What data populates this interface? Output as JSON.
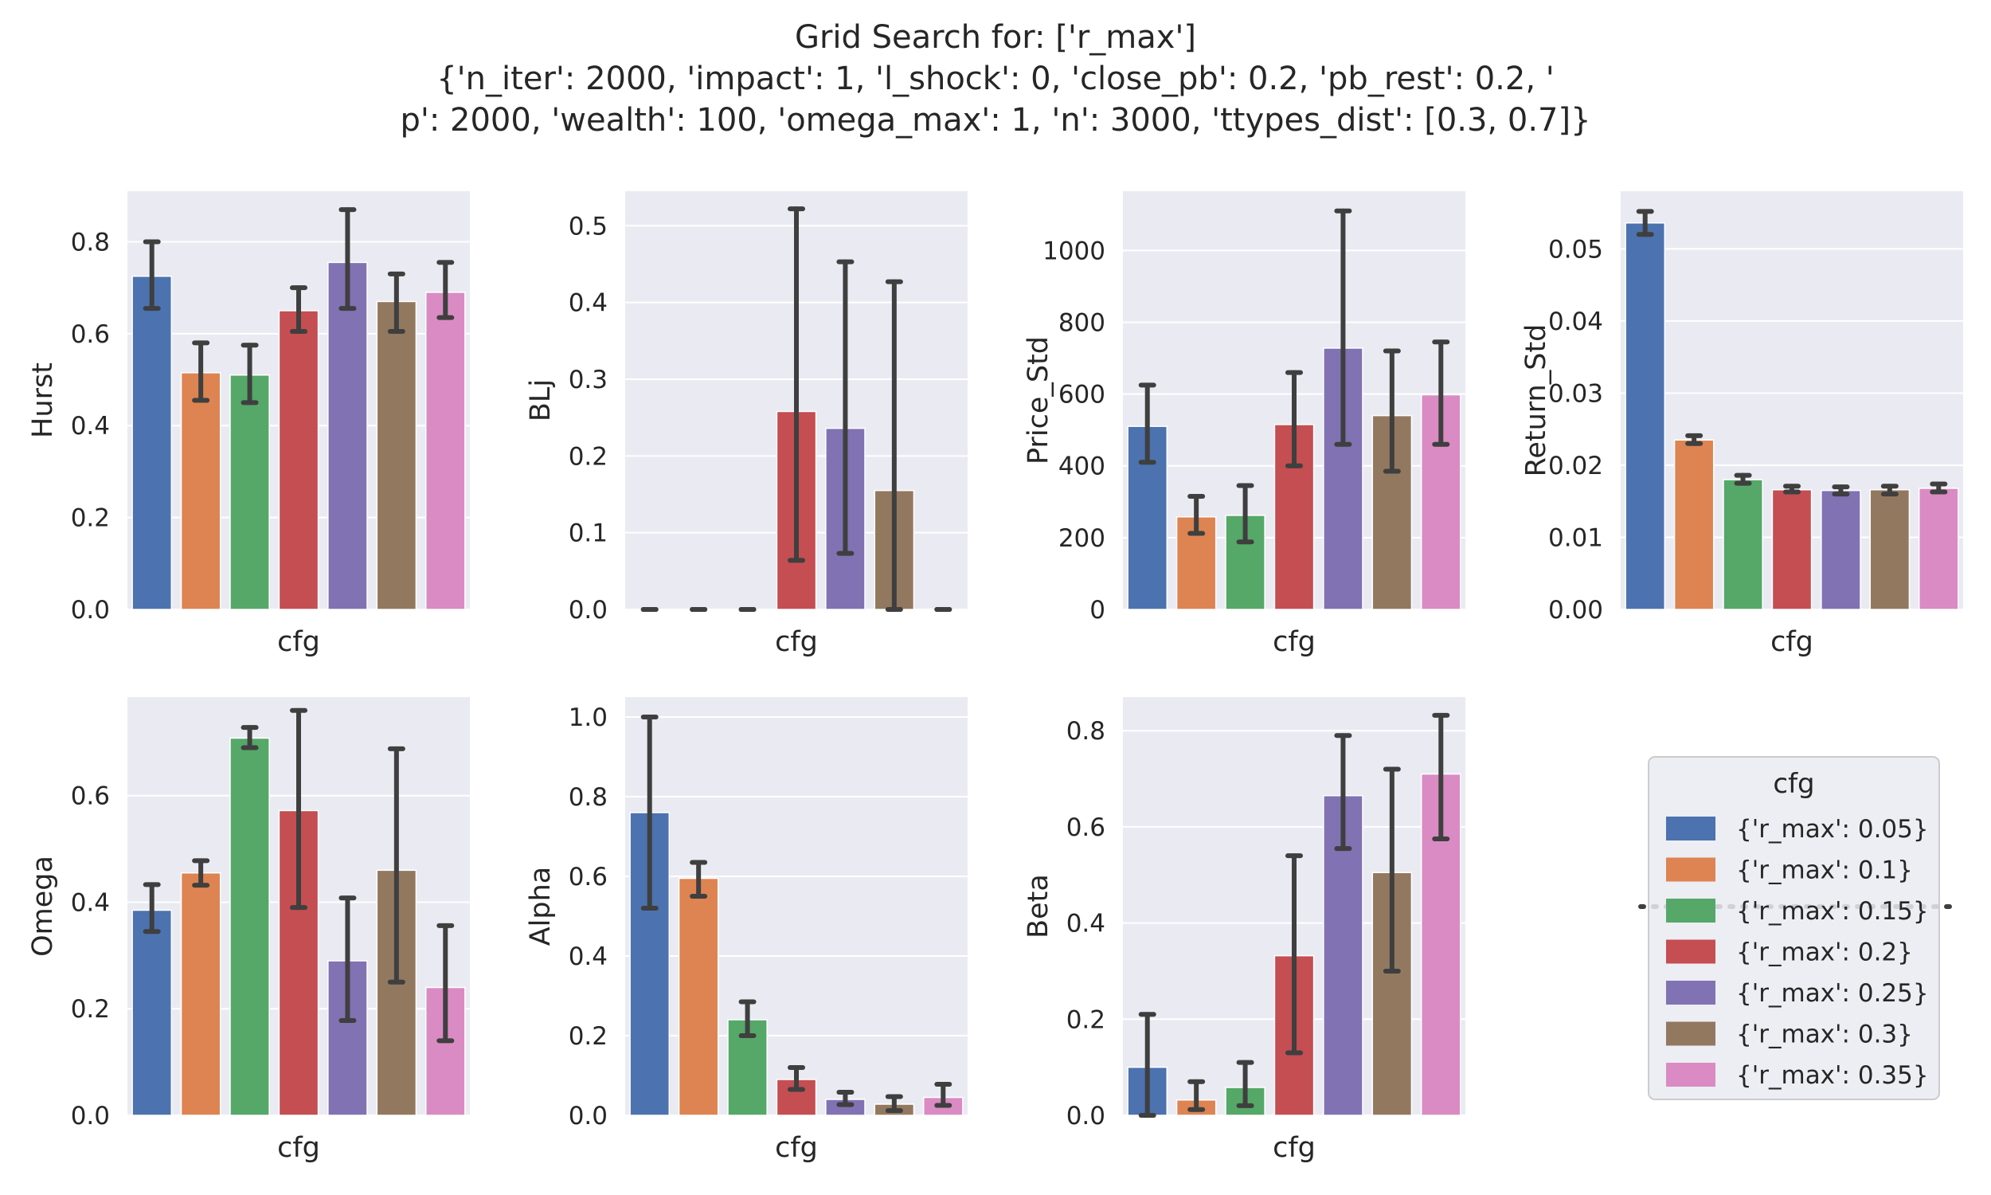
{
  "figure": {
    "title_lines": [
      "Grid Search for: ['r_max']",
      "{'n_iter': 2000, 'impact': 1, 'l_shock': 0, 'close_pb': 0.2, 'pb_rest': 0.2, '",
      "p': 2000, 'wealth': 100, 'omega_max': 1, 'n': 3000, 'ttypes_dist': [0.3, 0.7]}"
    ]
  },
  "colors": {
    "axes_bg": "#eaeaf2",
    "grid": "#ffffff",
    "errorbar": "#3f3f3f",
    "series": [
      "#4c72b0",
      "#dd8452",
      "#55a868",
      "#c44e52",
      "#8172b3",
      "#937860",
      "#da8bc3"
    ]
  },
  "legend": {
    "title": "cfg",
    "labels": [
      "{'r_max': 0.05}",
      "{'r_max': 0.1}",
      "{'r_max': 0.15}",
      "{'r_max': 0.2}",
      "{'r_max': 0.25}",
      "{'r_max': 0.3}",
      "{'r_max': 0.35}"
    ]
  },
  "chart_data": [
    {
      "type": "bar",
      "xlabel": "cfg",
      "ylabel": "Hurst",
      "ylim": [
        0,
        0.91
      ],
      "yticks": [
        0.0,
        0.2,
        0.4,
        0.6,
        0.8
      ],
      "tick_labels": [
        "0.0",
        "0.2",
        "0.4",
        "0.6",
        "0.8"
      ],
      "values": [
        0.725,
        0.515,
        0.51,
        0.65,
        0.755,
        0.67,
        0.69
      ],
      "err_low": [
        0.655,
        0.455,
        0.45,
        0.605,
        0.655,
        0.605,
        0.635
      ],
      "err_high": [
        0.8,
        0.58,
        0.575,
        0.7,
        0.87,
        0.73,
        0.755
      ]
    },
    {
      "type": "bar",
      "xlabel": "cfg",
      "ylabel": "BLj",
      "ylim": [
        0,
        0.545
      ],
      "yticks": [
        0.0,
        0.1,
        0.2,
        0.3,
        0.4,
        0.5
      ],
      "tick_labels": [
        "0.0",
        "0.1",
        "0.2",
        "0.3",
        "0.4",
        "0.5"
      ],
      "values": [
        0.0,
        0.0,
        0.0,
        0.258,
        0.236,
        0.155,
        0.0
      ],
      "err_low": [
        0.0,
        0.0,
        0.0,
        0.064,
        0.073,
        0.0,
        0.0
      ],
      "err_high": [
        0.0,
        0.0,
        0.0,
        0.522,
        0.453,
        0.427,
        0.0
      ]
    },
    {
      "type": "bar",
      "xlabel": "cfg",
      "ylabel": "Price_Std",
      "ylim": [
        0,
        1165
      ],
      "yticks": [
        0,
        200,
        400,
        600,
        800,
        1000
      ],
      "tick_labels": [
        "0",
        "200",
        "400",
        "600",
        "800",
        "1000"
      ],
      "values": [
        510,
        258,
        262,
        515,
        728,
        540,
        598
      ],
      "err_low": [
        410,
        212,
        188,
        400,
        460,
        385,
        460
      ],
      "err_high": [
        625,
        315,
        345,
        660,
        1110,
        720,
        745
      ]
    },
    {
      "type": "bar",
      "xlabel": "cfg",
      "ylabel": "Return_Std",
      "ylim": [
        0,
        0.058
      ],
      "yticks": [
        0.0,
        0.01,
        0.02,
        0.03,
        0.04,
        0.05
      ],
      "tick_labels": [
        "0.00",
        "0.01",
        "0.02",
        "0.03",
        "0.04",
        "0.05"
      ],
      "values": [
        0.0536,
        0.0235,
        0.018,
        0.0166,
        0.0165,
        0.0166,
        0.0168
      ],
      "err_low": [
        0.052,
        0.023,
        0.0175,
        0.0163,
        0.016,
        0.016,
        0.0163
      ],
      "err_high": [
        0.0552,
        0.0241,
        0.0186,
        0.0171,
        0.017,
        0.0171,
        0.0174
      ]
    },
    {
      "type": "bar",
      "xlabel": "cfg",
      "ylabel": "Omega",
      "ylim": [
        0,
        0.785
      ],
      "yticks": [
        0.0,
        0.2,
        0.4,
        0.6
      ],
      "tick_labels": [
        "0.0",
        "0.2",
        "0.4",
        "0.6"
      ],
      "values": [
        0.385,
        0.455,
        0.708,
        0.572,
        0.29,
        0.46,
        0.24
      ],
      "err_low": [
        0.345,
        0.432,
        0.69,
        0.39,
        0.178,
        0.25,
        0.14
      ],
      "err_high": [
        0.433,
        0.478,
        0.728,
        0.76,
        0.408,
        0.688,
        0.356
      ]
    },
    {
      "type": "bar",
      "xlabel": "cfg",
      "ylabel": "Alpha",
      "ylim": [
        0,
        1.05
      ],
      "yticks": [
        0.0,
        0.2,
        0.4,
        0.6,
        0.8,
        1.0
      ],
      "tick_labels": [
        "0.0",
        "0.2",
        "0.4",
        "0.6",
        "0.8",
        "1.0"
      ],
      "values": [
        0.76,
        0.595,
        0.24,
        0.09,
        0.04,
        0.028,
        0.045
      ],
      "err_low": [
        0.52,
        0.55,
        0.2,
        0.065,
        0.027,
        0.012,
        0.025
      ],
      "err_high": [
        1.0,
        0.635,
        0.285,
        0.12,
        0.058,
        0.047,
        0.078
      ]
    },
    {
      "type": "bar",
      "xlabel": "cfg",
      "ylabel": "Beta",
      "ylim": [
        0,
        0.87
      ],
      "yticks": [
        0.0,
        0.2,
        0.4,
        0.6,
        0.8
      ],
      "tick_labels": [
        "0.0",
        "0.2",
        "0.4",
        "0.6",
        "0.8"
      ],
      "values": [
        0.1,
        0.032,
        0.058,
        0.332,
        0.665,
        0.505,
        0.71
      ],
      "err_low": [
        0.0,
        0.012,
        0.02,
        0.13,
        0.555,
        0.3,
        0.575
      ],
      "err_high": [
        0.21,
        0.07,
        0.11,
        0.54,
        0.79,
        0.72,
        0.832
      ]
    }
  ]
}
